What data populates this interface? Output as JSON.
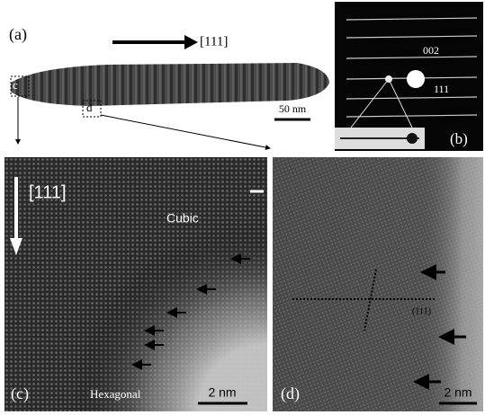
{
  "panels": {
    "a": {
      "label": "(a)",
      "direction": "[111]",
      "scale_bar": "50 nm",
      "box_c": "c",
      "box_d": "d"
    },
    "b": {
      "label": "(b)",
      "spot_1": "002",
      "spot_2": "111"
    },
    "c": {
      "label": "(c)",
      "direction": "[111]",
      "upper_phase": "Cubic",
      "lower_phase": "Hexagonal",
      "scale_bar": "2 nm"
    },
    "d": {
      "label": "(d)",
      "plane": "(111)",
      "scale_bar": "2 nm"
    }
  }
}
